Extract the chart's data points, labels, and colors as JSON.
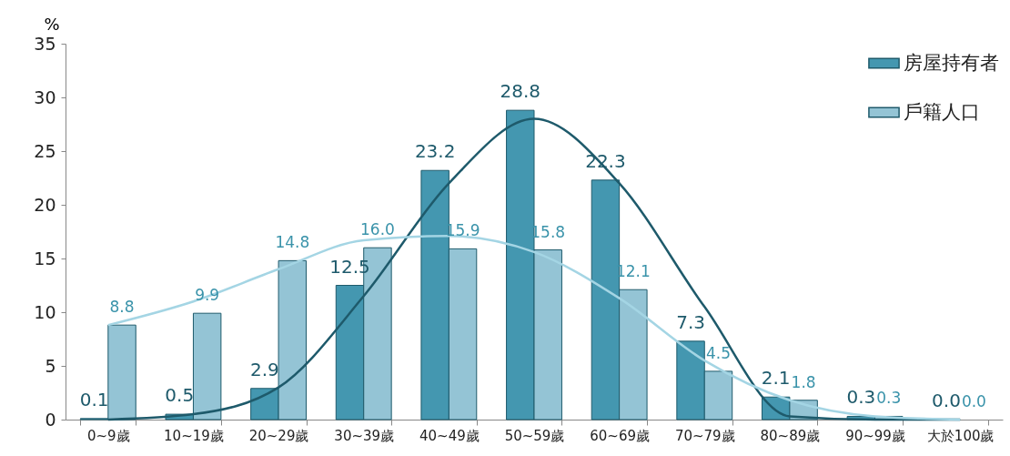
{
  "chart_data": {
    "type": "bar",
    "ylabel": "%",
    "categories": [
      "0~9歲",
      "10~19歲",
      "20~29歲",
      "30~39歲",
      "40~49歲",
      "50~59歲",
      "60~69歲",
      "70~79歲",
      "80~89歲",
      "90~99歲",
      "大於100歲"
    ],
    "series": [
      {
        "name": "房屋持有者",
        "color": "#4497b0",
        "values": [
          0.1,
          0.5,
          2.9,
          12.5,
          23.2,
          28.8,
          22.3,
          7.3,
          2.1,
          0.3,
          0.0
        ],
        "value_labels": [
          "0.1",
          "0.5",
          "2.9",
          "12.5",
          "23.2",
          "28.8",
          "22.3",
          "7.3",
          "2.1",
          "0.3",
          "0.0"
        ]
      },
      {
        "name": "戶籍人口",
        "color": "#94c4d5",
        "values": [
          8.8,
          9.9,
          14.8,
          16.0,
          15.9,
          15.8,
          12.1,
          4.5,
          1.8,
          0.3,
          0.0
        ],
        "value_labels": [
          "8.8",
          "9.9",
          "14.8",
          "16.0",
          "15.9",
          "15.8",
          "12.1",
          "4.5",
          "1.8",
          "0.3",
          "0.0"
        ]
      },
      {
        "type": "line",
        "color": "#1e5a6b",
        "values": [
          0,
          0.5,
          3,
          11.5,
          22,
          28,
          22,
          10.5,
          0.3,
          0,
          0
        ]
      },
      {
        "type": "line",
        "color": "#a4d5e4",
        "values": [
          8.8,
          11,
          14,
          16.7,
          17.1,
          15.6,
          11.3,
          5.5,
          1.8,
          0.3,
          0
        ]
      }
    ],
    "ylim": [
      0,
      35
    ],
    "yticks": [
      0,
      5,
      10,
      15,
      20,
      25,
      30,
      35
    ],
    "legend": "top right",
    "grid": false
  }
}
